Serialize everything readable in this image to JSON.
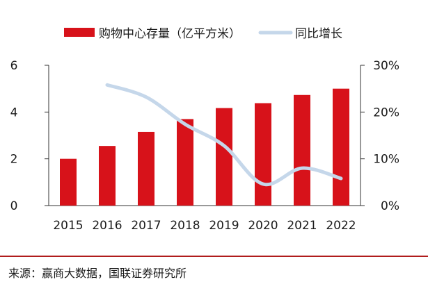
{
  "chart_data": {
    "type": "bar+line",
    "categories": [
      "2015",
      "2016",
      "2017",
      "2018",
      "2019",
      "2020",
      "2021",
      "2022"
    ],
    "series": [
      {
        "name": "购物中心存量（亿平方米）",
        "type": "bar",
        "axis": "left",
        "values": [
          2.0,
          2.55,
          3.15,
          3.7,
          4.17,
          4.38,
          4.73,
          5.0
        ]
      },
      {
        "name": "同比增长",
        "type": "line",
        "axis": "right",
        "values": [
          null,
          25.8,
          23.2,
          17.4,
          12.8,
          4.6,
          8.0,
          5.8
        ]
      }
    ],
    "y_left": {
      "min": 0,
      "max": 6,
      "ticks": [
        0,
        2,
        4,
        6
      ],
      "labels": [
        "0",
        "2",
        "4",
        "6"
      ]
    },
    "y_right": {
      "min": 0,
      "max": 30,
      "ticks": [
        0,
        10,
        20,
        30
      ],
      "labels": [
        "0%",
        "10%",
        "20%",
        "30%"
      ]
    },
    "legend_position": "top",
    "grid": false
  },
  "colors": {
    "bar": "#d7121a",
    "line": "#c5d7ea",
    "axis": "#333333"
  },
  "source": "来源：赢商大数据，国联证券研究所"
}
